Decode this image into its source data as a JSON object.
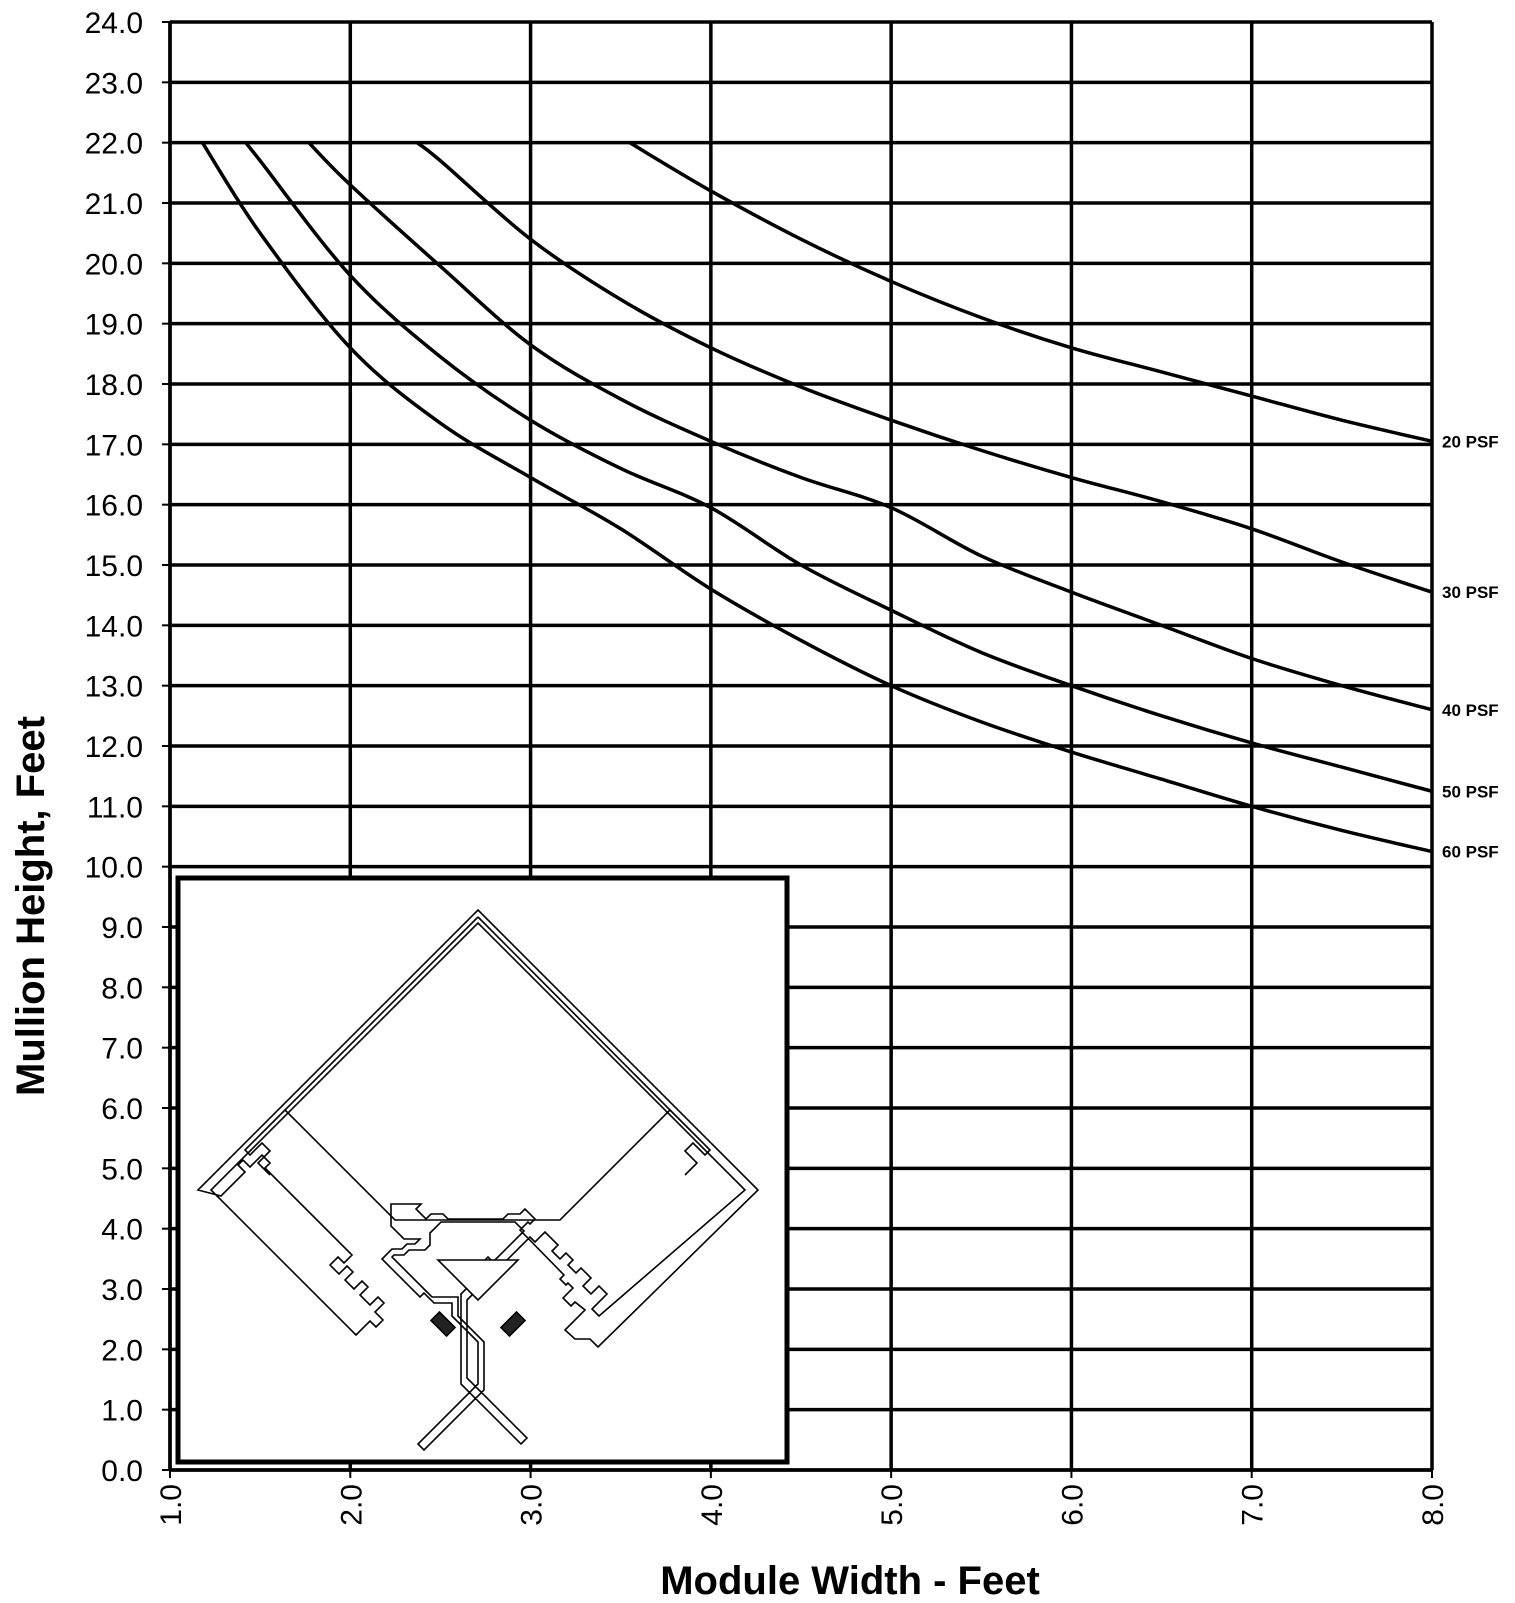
{
  "chart_data": {
    "type": "line",
    "title": "",
    "xlabel": "Module Width - Feet",
    "ylabel": "Mullion Height, Feet",
    "xlim": [
      1.0,
      8.0
    ],
    "ylim": [
      0.0,
      24.0
    ],
    "x_ticks": [
      "1.0",
      "2.0",
      "3.0",
      "4.0",
      "5.0",
      "6.0",
      "7.0",
      "8.0"
    ],
    "y_ticks": [
      "0.0",
      "1.0",
      "2.0",
      "3.0",
      "4.0",
      "5.0",
      "6.0",
      "7.0",
      "8.0",
      "9.0",
      "10.0",
      "11.0",
      "12.0",
      "13.0",
      "14.0",
      "15.0",
      "16.0",
      "17.0",
      "18.0",
      "19.0",
      "20.0",
      "21.0",
      "22.0",
      "23.0",
      "24.0"
    ],
    "grid": true,
    "legend": "none",
    "series": [
      {
        "name": "20 PSF",
        "x": [
          3.55,
          4.0,
          4.5,
          5.0,
          5.5,
          6.0,
          6.5,
          7.0,
          7.5,
          8.0
        ],
        "y": [
          22.0,
          21.2,
          20.4,
          19.7,
          19.1,
          18.6,
          18.2,
          17.8,
          17.4,
          17.05
        ]
      },
      {
        "name": "30 PSF",
        "x": [
          2.37,
          2.5,
          3.0,
          3.5,
          4.0,
          4.5,
          5.0,
          5.5,
          6.0,
          6.5,
          7.0,
          7.5,
          8.0
        ],
        "y": [
          22.0,
          21.7,
          20.4,
          19.4,
          18.6,
          17.95,
          17.4,
          16.9,
          16.45,
          16.05,
          15.6,
          15.05,
          14.55
        ]
      },
      {
        "name": "40 PSF",
        "x": [
          1.77,
          2.0,
          2.5,
          3.0,
          3.5,
          4.0,
          4.5,
          5.0,
          5.5,
          6.0,
          6.5,
          7.0,
          7.5,
          8.0
        ],
        "y": [
          22.0,
          21.3,
          19.95,
          18.65,
          17.75,
          17.05,
          16.45,
          15.95,
          15.15,
          14.55,
          14.0,
          13.45,
          13.0,
          12.6
        ]
      },
      {
        "name": "50 PSF",
        "x": [
          1.42,
          1.5,
          2.0,
          2.5,
          3.0,
          3.5,
          4.0,
          4.5,
          5.0,
          5.5,
          6.0,
          6.5,
          7.0,
          7.5,
          8.0
        ],
        "y": [
          22.0,
          21.7,
          19.8,
          18.45,
          17.4,
          16.6,
          15.95,
          15.0,
          14.25,
          13.55,
          13.0,
          12.5,
          12.05,
          11.65,
          11.25
        ]
      },
      {
        "name": "60 PSF",
        "x": [
          1.18,
          1.5,
          2.0,
          2.5,
          3.0,
          3.5,
          4.0,
          4.5,
          5.0,
          5.5,
          6.0,
          6.5,
          7.0,
          7.5,
          8.0
        ],
        "y": [
          22.0,
          20.5,
          18.6,
          17.35,
          16.45,
          15.6,
          14.6,
          13.75,
          13.0,
          12.4,
          11.9,
          11.45,
          11.0,
          10.6,
          10.25
        ]
      }
    ]
  }
}
